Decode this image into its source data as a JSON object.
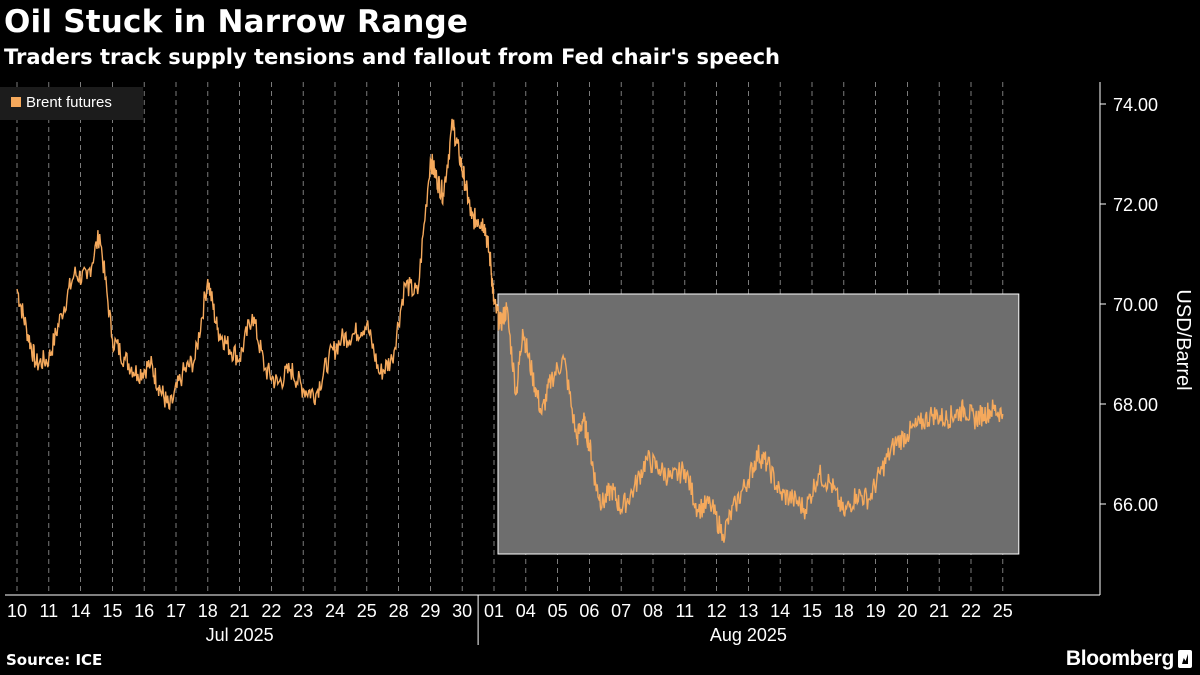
{
  "header": {
    "title": "Oil Stuck in Narrow Range",
    "subtitle": "Traders track supply tensions and fallout from Fed chair's speech"
  },
  "footer": {
    "source": "Source: ICE",
    "brand": "Bloomberg"
  },
  "colors": {
    "background": "#000000",
    "series": "#f5a95c",
    "highlight": "#6e6e6e",
    "grid": "#9a9a9a",
    "text": "#ffffff"
  },
  "chart_data": {
    "type": "line",
    "title": "Oil Stuck in Narrow Range",
    "subtitle": "Traders track supply tensions and fallout from Fed chair's speech",
    "ylabel": "USD/Barrel",
    "ylim": [
      64.5,
      74.5
    ],
    "yticks": [
      "74.00",
      "72.00",
      "70.00",
      "68.00",
      "66.00"
    ],
    "ytick_values": [
      74,
      72,
      70,
      68,
      66
    ],
    "legend": {
      "label": "Brent futures",
      "position": "top-left"
    },
    "x_days": [
      "10",
      "11",
      "14",
      "15",
      "16",
      "17",
      "18",
      "21",
      "22",
      "23",
      "24",
      "25",
      "28",
      "29",
      "30",
      "01",
      "04",
      "05",
      "06",
      "07",
      "08",
      "11",
      "12",
      "13",
      "14",
      "15",
      "18",
      "19",
      "20",
      "21",
      "22",
      "25"
    ],
    "x_months": [
      {
        "label": "Jul 2025",
        "start_index": 0,
        "end_index": 14
      },
      {
        "label": "Aug 2025",
        "start_index": 15,
        "end_index": 31
      }
    ],
    "highlight_range": {
      "x_start": 15.0,
      "x_end": 31.0,
      "y_min": 65.0,
      "y_max": 70.2
    },
    "series": [
      {
        "name": "Brent futures",
        "x": [
          0,
          0.3,
          0.6,
          1.0,
          1.4,
          1.8,
          2.2,
          2.6,
          3.0,
          3.4,
          3.8,
          4.2,
          4.5,
          4.8,
          5.2,
          5.6,
          6.0,
          6.3,
          6.6,
          7.0,
          7.4,
          7.8,
          8.2,
          8.6,
          9.0,
          9.4,
          9.8,
          10.2,
          10.6,
          11.0,
          11.4,
          11.8,
          12.2,
          12.6,
          13.0,
          13.2,
          13.4,
          13.7,
          13.9,
          14.1,
          14.3,
          14.5,
          14.7,
          14.9,
          15.0,
          15.2,
          15.4,
          15.7,
          15.9,
          16.2,
          16.5,
          16.8,
          17.2,
          17.6,
          17.8,
          18.0,
          18.2,
          18.4,
          18.7,
          19.0,
          19.4,
          19.8,
          20.2,
          20.6,
          21.0,
          21.4,
          21.8,
          22.2,
          22.6,
          23.0,
          23.3,
          23.6,
          24.0,
          24.4,
          24.8,
          25.2,
          25.6,
          26.0,
          26.4,
          26.8,
          27.2,
          27.6,
          28.0,
          28.4,
          28.8,
          29.2,
          29.5,
          29.8,
          30.1,
          30.4,
          30.7,
          31.0
        ],
        "values": [
          70.3,
          69.5,
          68.8,
          68.9,
          69.8,
          70.6,
          70.5,
          71.4,
          69.3,
          68.9,
          68.6,
          68.8,
          68.3,
          67.9,
          68.6,
          68.9,
          70.5,
          69.5,
          69.2,
          68.9,
          69.8,
          68.7,
          68.4,
          68.7,
          68.3,
          68.2,
          68.9,
          69.3,
          69.4,
          69.6,
          68.6,
          68.9,
          70.4,
          70.2,
          72.9,
          72.5,
          72.2,
          73.6,
          73.0,
          72.4,
          71.7,
          71.7,
          71.6,
          70.8,
          70.0,
          69.6,
          69.9,
          68.2,
          69.5,
          68.6,
          67.8,
          68.5,
          68.9,
          67.3,
          67.7,
          67.2,
          66.4,
          66.0,
          66.3,
          65.9,
          66.3,
          66.9,
          66.7,
          66.5,
          66.7,
          65.9,
          66.0,
          65.4,
          66.0,
          66.5,
          67.0,
          66.8,
          66.2,
          66.1,
          65.9,
          66.6,
          66.4,
          65.8,
          66.2,
          66.1,
          66.7,
          67.2,
          67.4,
          67.6,
          67.8,
          67.7,
          67.8,
          67.9,
          67.7,
          67.8,
          67.9,
          67.8
        ]
      }
    ]
  }
}
